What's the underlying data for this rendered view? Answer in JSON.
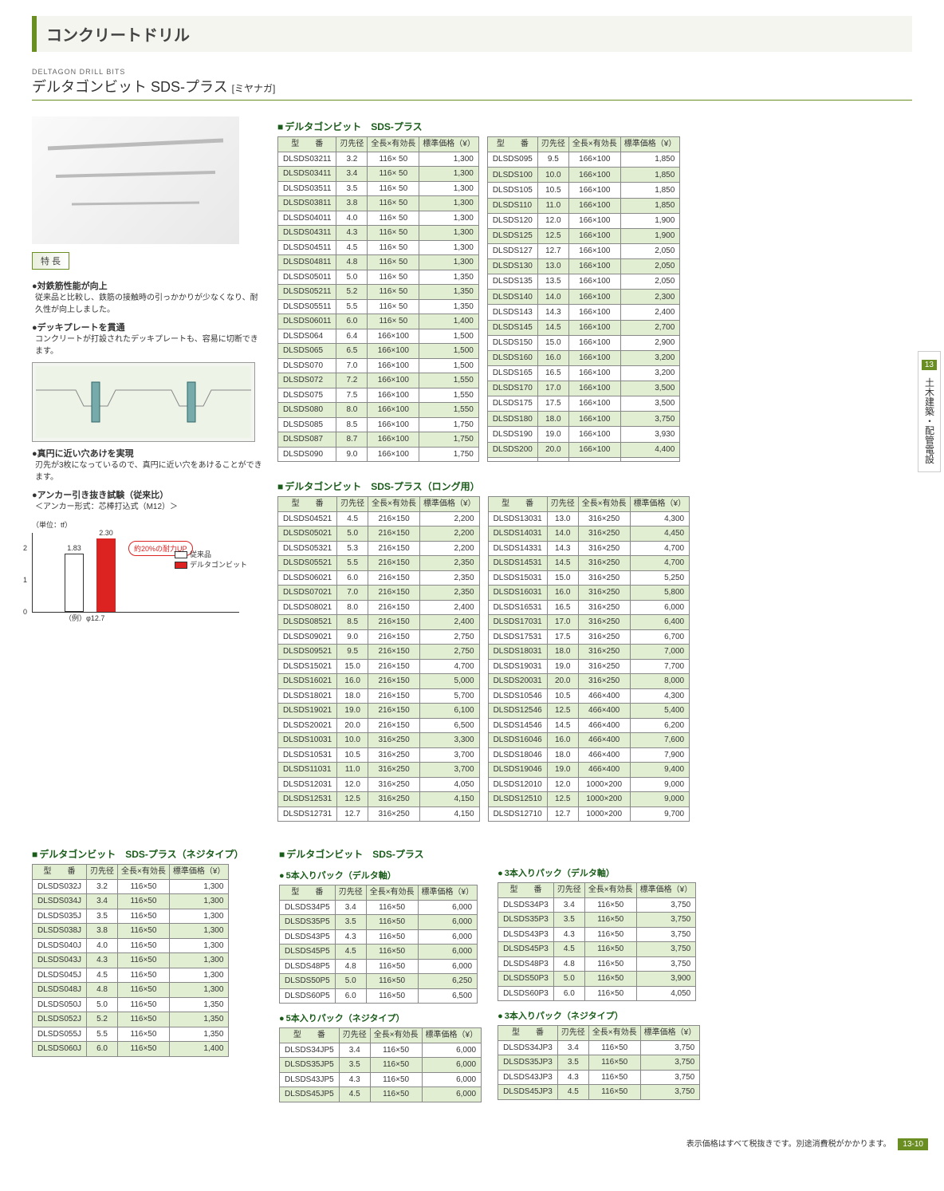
{
  "category_title": "コンクリートドリル",
  "subtitle_en": "DELTAGON DRILL BITS",
  "subtitle_jp": "デルタゴンビット SDS-プラス",
  "brand": "[ミヤナガ]",
  "features_label": "特 長",
  "f1_head": "●対鉄筋性能が向上",
  "f1_body": "従来品と比較し、鉄筋の接触時の引っかかりが少なくなり、耐久性が向上しました。",
  "f2_head": "●デッキプレートを貫通",
  "f2_body": "コンクリートが打設されたデッキプレートも、容易に切断できます。",
  "f3_head": "●真円に近い穴あけを実現",
  "f3_body": "刃先が3枚になっているので、真円に近い穴をあけることができます。",
  "f4_head": "●アンカー引き抜き試験（従来比）",
  "f4_sub": "＜アンカー形式：芯棒打込式（M12）＞",
  "chart_unit": "（単位：tf）",
  "chart_bar1_val": "1.83",
  "chart_bar2_val": "2.30",
  "chart_bar1_h": 73,
  "chart_bar2_h": 92,
  "chart_callout": "約20%の耐力UP",
  "chart_leg1": "従来品",
  "chart_leg2": "デルタゴンビット",
  "chart_xlabel": "（例）φ12.7",
  "col_model": "型　　番",
  "col_dia": "刃先径",
  "col_len": "全長×有効長",
  "col_price": "標準価格（¥）",
  "t1_title": "デルタゴンビット　SDS-プラス",
  "t1_left": [
    [
      "DLSDS03211",
      "3.2",
      "116× 50",
      "1,300"
    ],
    [
      "DLSDS03411",
      "3.4",
      "116× 50",
      "1,300"
    ],
    [
      "DLSDS03511",
      "3.5",
      "116× 50",
      "1,300"
    ],
    [
      "DLSDS03811",
      "3.8",
      "116× 50",
      "1,300"
    ],
    [
      "DLSDS04011",
      "4.0",
      "116× 50",
      "1,300"
    ],
    [
      "DLSDS04311",
      "4.3",
      "116× 50",
      "1,300"
    ],
    [
      "DLSDS04511",
      "4.5",
      "116× 50",
      "1,300"
    ],
    [
      "DLSDS04811",
      "4.8",
      "116× 50",
      "1,300"
    ],
    [
      "DLSDS05011",
      "5.0",
      "116× 50",
      "1,350"
    ],
    [
      "DLSDS05211",
      "5.2",
      "116× 50",
      "1,350"
    ],
    [
      "DLSDS05511",
      "5.5",
      "116× 50",
      "1,350"
    ],
    [
      "DLSDS06011",
      "6.0",
      "116× 50",
      "1,400"
    ],
    [
      "DLSDS064",
      "6.4",
      "166×100",
      "1,500"
    ],
    [
      "DLSDS065",
      "6.5",
      "166×100",
      "1,500"
    ],
    [
      "DLSDS070",
      "7.0",
      "166×100",
      "1,500"
    ],
    [
      "DLSDS072",
      "7.2",
      "166×100",
      "1,550"
    ],
    [
      "DLSDS075",
      "7.5",
      "166×100",
      "1,550"
    ],
    [
      "DLSDS080",
      "8.0",
      "166×100",
      "1,550"
    ],
    [
      "DLSDS085",
      "8.5",
      "166×100",
      "1,750"
    ],
    [
      "DLSDS087",
      "8.7",
      "166×100",
      "1,750"
    ],
    [
      "DLSDS090",
      "9.0",
      "166×100",
      "1,750"
    ]
  ],
  "t1_right": [
    [
      "DLSDS095",
      "9.5",
      "166×100",
      "1,850"
    ],
    [
      "DLSDS100",
      "10.0",
      "166×100",
      "1,850"
    ],
    [
      "DLSDS105",
      "10.5",
      "166×100",
      "1,850"
    ],
    [
      "DLSDS110",
      "11.0",
      "166×100",
      "1,850"
    ],
    [
      "DLSDS120",
      "12.0",
      "166×100",
      "1,900"
    ],
    [
      "DLSDS125",
      "12.5",
      "166×100",
      "1,900"
    ],
    [
      "DLSDS127",
      "12.7",
      "166×100",
      "2,050"
    ],
    [
      "DLSDS130",
      "13.0",
      "166×100",
      "2,050"
    ],
    [
      "DLSDS135",
      "13.5",
      "166×100",
      "2,050"
    ],
    [
      "DLSDS140",
      "14.0",
      "166×100",
      "2,300"
    ],
    [
      "DLSDS143",
      "14.3",
      "166×100",
      "2,400"
    ],
    [
      "DLSDS145",
      "14.5",
      "166×100",
      "2,700"
    ],
    [
      "DLSDS150",
      "15.0",
      "166×100",
      "2,900"
    ],
    [
      "DLSDS160",
      "16.0",
      "166×100",
      "3,200"
    ],
    [
      "DLSDS165",
      "16.5",
      "166×100",
      "3,200"
    ],
    [
      "DLSDS170",
      "17.0",
      "166×100",
      "3,500"
    ],
    [
      "DLSDS175",
      "17.5",
      "166×100",
      "3,500"
    ],
    [
      "DLSDS180",
      "18.0",
      "166×100",
      "3,750"
    ],
    [
      "DLSDS190",
      "19.0",
      "166×100",
      "3,930"
    ],
    [
      "DLSDS200",
      "20.0",
      "166×100",
      "4,400"
    ],
    [
      "",
      "",
      "",
      ""
    ]
  ],
  "t2_title": "デルタゴンビット　SDS-プラス（ロング用）",
  "t2_left": [
    [
      "DLSDS04521",
      "4.5",
      "216×150",
      "2,200"
    ],
    [
      "DLSDS05021",
      "5.0",
      "216×150",
      "2,200"
    ],
    [
      "DLSDS05321",
      "5.3",
      "216×150",
      "2,200"
    ],
    [
      "DLSDS05521",
      "5.5",
      "216×150",
      "2,350"
    ],
    [
      "DLSDS06021",
      "6.0",
      "216×150",
      "2,350"
    ],
    [
      "DLSDS07021",
      "7.0",
      "216×150",
      "2,350"
    ],
    [
      "DLSDS08021",
      "8.0",
      "216×150",
      "2,400"
    ],
    [
      "DLSDS08521",
      "8.5",
      "216×150",
      "2,400"
    ],
    [
      "DLSDS09021",
      "9.0",
      "216×150",
      "2,750"
    ],
    [
      "DLSDS09521",
      "9.5",
      "216×150",
      "2,750"
    ],
    [
      "DLSDS15021",
      "15.0",
      "216×150",
      "4,700"
    ],
    [
      "DLSDS16021",
      "16.0",
      "216×150",
      "5,000"
    ],
    [
      "DLSDS18021",
      "18.0",
      "216×150",
      "5,700"
    ],
    [
      "DLSDS19021",
      "19.0",
      "216×150",
      "6,100"
    ],
    [
      "DLSDS20021",
      "20.0",
      "216×150",
      "6,500"
    ],
    [
      "DLSDS10031",
      "10.0",
      "316×250",
      "3,300"
    ],
    [
      "DLSDS10531",
      "10.5",
      "316×250",
      "3,700"
    ],
    [
      "DLSDS11031",
      "11.0",
      "316×250",
      "3,700"
    ],
    [
      "DLSDS12031",
      "12.0",
      "316×250",
      "4,050"
    ],
    [
      "DLSDS12531",
      "12.5",
      "316×250",
      "4,150"
    ],
    [
      "DLSDS12731",
      "12.7",
      "316×250",
      "4,150"
    ]
  ],
  "t2_right": [
    [
      "DLSDS13031",
      "13.0",
      "316×250",
      "4,300"
    ],
    [
      "DLSDS14031",
      "14.0",
      "316×250",
      "4,450"
    ],
    [
      "DLSDS14331",
      "14.3",
      "316×250",
      "4,700"
    ],
    [
      "DLSDS14531",
      "14.5",
      "316×250",
      "4,700"
    ],
    [
      "DLSDS15031",
      "15.0",
      "316×250",
      "5,250"
    ],
    [
      "DLSDS16031",
      "16.0",
      "316×250",
      "5,800"
    ],
    [
      "DLSDS16531",
      "16.5",
      "316×250",
      "6,000"
    ],
    [
      "DLSDS17031",
      "17.0",
      "316×250",
      "6,400"
    ],
    [
      "DLSDS17531",
      "17.5",
      "316×250",
      "6,700"
    ],
    [
      "DLSDS18031",
      "18.0",
      "316×250",
      "7,000"
    ],
    [
      "DLSDS19031",
      "19.0",
      "316×250",
      "7,700"
    ],
    [
      "DLSDS20031",
      "20.0",
      "316×250",
      "8,000"
    ],
    [
      "DLSDS10546",
      "10.5",
      "466×400",
      "4,300"
    ],
    [
      "DLSDS12546",
      "12.5",
      "466×400",
      "5,400"
    ],
    [
      "DLSDS14546",
      "14.5",
      "466×400",
      "6,200"
    ],
    [
      "DLSDS16046",
      "16.0",
      "466×400",
      "7,600"
    ],
    [
      "DLSDS18046",
      "18.0",
      "466×400",
      "7,900"
    ],
    [
      "DLSDS19046",
      "19.0",
      "466×400",
      "9,400"
    ],
    [
      "DLSDS12010",
      "12.0",
      "1000×200",
      "9,000"
    ],
    [
      "DLSDS12510",
      "12.5",
      "1000×200",
      "9,000"
    ],
    [
      "DLSDS12710",
      "12.7",
      "1000×200",
      "9,700"
    ]
  ],
  "t3_title": "デルタゴンビット　SDS-プラス（ネジタイプ）",
  "t3_rows": [
    [
      "DLSDS032J",
      "3.2",
      "116×50",
      "1,300"
    ],
    [
      "DLSDS034J",
      "3.4",
      "116×50",
      "1,300"
    ],
    [
      "DLSDS035J",
      "3.5",
      "116×50",
      "1,300"
    ],
    [
      "DLSDS038J",
      "3.8",
      "116×50",
      "1,300"
    ],
    [
      "DLSDS040J",
      "4.0",
      "116×50",
      "1,300"
    ],
    [
      "DLSDS043J",
      "4.3",
      "116×50",
      "1,300"
    ],
    [
      "DLSDS045J",
      "4.5",
      "116×50",
      "1,300"
    ],
    [
      "DLSDS048J",
      "4.8",
      "116×50",
      "1,300"
    ],
    [
      "DLSDS050J",
      "5.0",
      "116×50",
      "1,350"
    ],
    [
      "DLSDS052J",
      "5.2",
      "116×50",
      "1,350"
    ],
    [
      "DLSDS055J",
      "5.5",
      "116×50",
      "1,350"
    ],
    [
      "DLSDS060J",
      "6.0",
      "116×50",
      "1,400"
    ]
  ],
  "t4_title": "デルタゴンビット　SDS-プラス",
  "t4a_sub": "5本入りパック（デルタ軸）",
  "t4a_rows": [
    [
      "DLSDS34P5",
      "3.4",
      "116×50",
      "6,000"
    ],
    [
      "DLSDS35P5",
      "3.5",
      "116×50",
      "6,000"
    ],
    [
      "DLSDS43P5",
      "4.3",
      "116×50",
      "6,000"
    ],
    [
      "DLSDS45P5",
      "4.5",
      "116×50",
      "6,000"
    ],
    [
      "DLSDS48P5",
      "4.8",
      "116×50",
      "6,000"
    ],
    [
      "DLSDS50P5",
      "5.0",
      "116×50",
      "6,250"
    ],
    [
      "DLSDS60P5",
      "6.0",
      "116×50",
      "6,500"
    ]
  ],
  "t4b_sub": "5本入りパック（ネジタイプ）",
  "t4b_rows": [
    [
      "DLSDS34JP5",
      "3.4",
      "116×50",
      "6,000"
    ],
    [
      "DLSDS35JP5",
      "3.5",
      "116×50",
      "6,000"
    ],
    [
      "DLSDS43JP5",
      "4.3",
      "116×50",
      "6,000"
    ],
    [
      "DLSDS45JP5",
      "4.5",
      "116×50",
      "6,000"
    ]
  ],
  "t5a_sub": "3本入りパック（デルタ軸）",
  "t5a_rows": [
    [
      "DLSDS34P3",
      "3.4",
      "116×50",
      "3,750"
    ],
    [
      "DLSDS35P3",
      "3.5",
      "116×50",
      "3,750"
    ],
    [
      "DLSDS43P3",
      "4.3",
      "116×50",
      "3,750"
    ],
    [
      "DLSDS45P3",
      "4.5",
      "116×50",
      "3,750"
    ],
    [
      "DLSDS48P3",
      "4.8",
      "116×50",
      "3,750"
    ],
    [
      "DLSDS50P3",
      "5.0",
      "116×50",
      "3,900"
    ],
    [
      "DLSDS60P3",
      "6.0",
      "116×50",
      "4,050"
    ]
  ],
  "t5b_sub": "3本入りパック（ネジタイプ）",
  "t5b_rows": [
    [
      "DLSDS34JP3",
      "3.4",
      "116×50",
      "3,750"
    ],
    [
      "DLSDS35JP3",
      "3.5",
      "116×50",
      "3,750"
    ],
    [
      "DLSDS43JP3",
      "4.3",
      "116×50",
      "3,750"
    ],
    [
      "DLSDS45JP3",
      "4.5",
      "116×50",
      "3,750"
    ]
  ],
  "sidetab_num": "13",
  "sidetab_text": "土木建築・配管電設",
  "footer_text": "表示価格はすべて税抜きです。別途消費税がかかります。",
  "footer_page": "13-10"
}
